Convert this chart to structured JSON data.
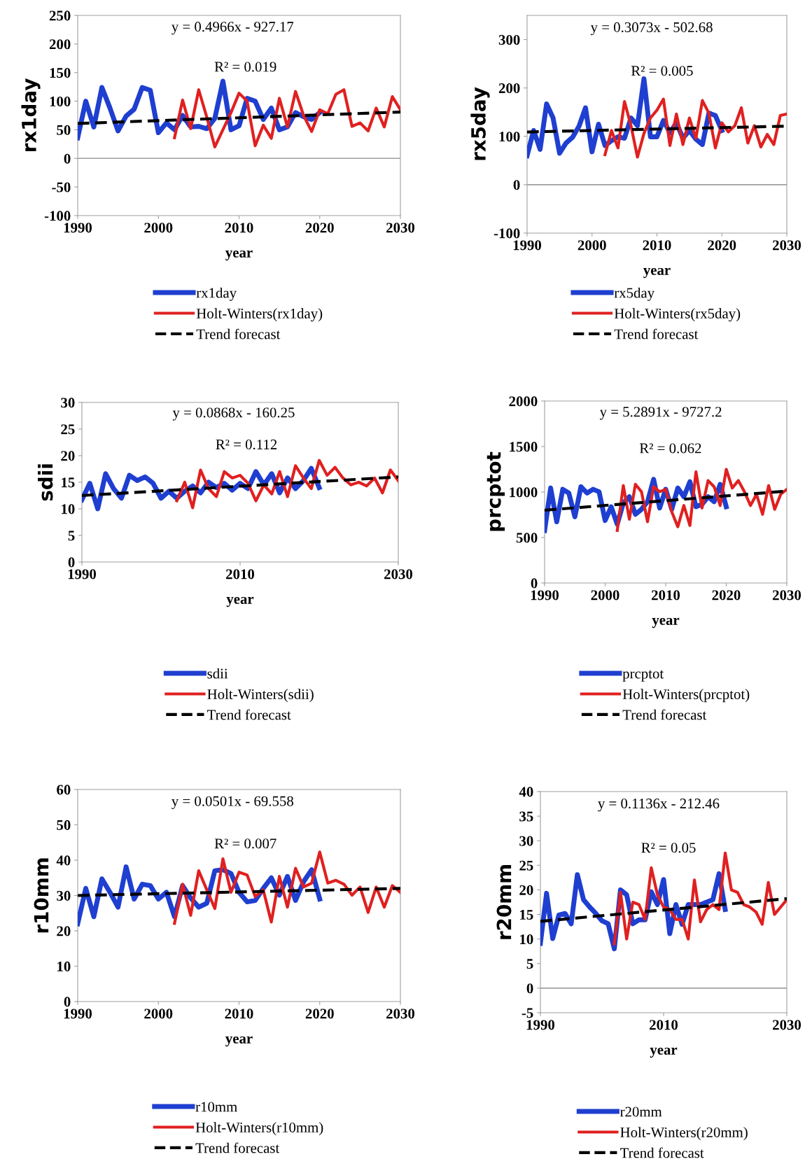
{
  "chart_data": [
    {
      "type": "line",
      "xlabel": "year",
      "ylabel": "rx1day",
      "xlim": [
        1990,
        2030
      ],
      "xticks": [
        1990,
        2000,
        2010,
        2020,
        2030
      ],
      "ylim": [
        -100,
        250
      ],
      "yticks": [
        -100,
        -50,
        0,
        50,
        100,
        150,
        200,
        250
      ],
      "legend": "bottom",
      "annotations": [
        "y = 0.4966x - 927.17",
        "R² = 0.019"
      ],
      "ref_lines": [
        {
          "axis": "y",
          "value": 0,
          "color": "#a0a0a0"
        }
      ],
      "series": [
        {
          "name": "rx1day",
          "color": "#1f3fd0",
          "x": [
            1990,
            1991,
            1992,
            1993,
            1994,
            1995,
            1996,
            1997,
            1998,
            1999,
            2000,
            2001,
            2002,
            2003,
            2004,
            2005,
            2006,
            2007,
            2008,
            2009,
            2010,
            2011,
            2012,
            2013,
            2014,
            2015,
            2016,
            2017,
            2018,
            2019,
            2020
          ],
          "values": [
            36,
            100,
            55,
            124,
            88,
            48,
            74,
            86,
            124,
            119,
            45,
            62,
            50,
            75,
            55,
            56,
            52,
            70,
            135,
            50,
            57,
            105,
            100,
            68,
            88,
            50,
            55,
            80,
            73,
            68,
            80
          ]
        },
        {
          "name": "Holt-Winters(rx1day)",
          "color": "#e02020",
          "x": [
            2002,
            2003,
            2004,
            2005,
            2006,
            2007,
            2008,
            2009,
            2010,
            2011,
            2012,
            2013,
            2014,
            2015,
            2016,
            2017,
            2018,
            2019,
            2020,
            2021,
            2022,
            2023,
            2024,
            2025,
            2026,
            2027,
            2028,
            2029,
            2030
          ],
          "values": [
            36,
            102,
            52,
            120,
            72,
            20,
            50,
            80,
            114,
            100,
            22,
            58,
            35,
            105,
            55,
            117,
            75,
            47,
            85,
            78,
            112,
            120,
            56,
            62,
            48,
            88,
            55,
            108,
            85
          ]
        },
        {
          "name": "Trend forecast",
          "color": "#000000",
          "line_style": "dashed",
          "x": [
            1990,
            2030
          ],
          "values": [
            61,
            81
          ]
        }
      ]
    },
    {
      "type": "line",
      "xlabel": "year",
      "ylabel": "rx5day",
      "xlim": [
        1990,
        2030
      ],
      "xticks": [
        1990,
        2000,
        2010,
        2020,
        2030
      ],
      "ylim": [
        -100,
        350
      ],
      "yticks": [
        -100,
        0,
        100,
        200,
        300
      ],
      "legend": "bottom",
      "annotations": [
        "y = 0.3073x - 502.68",
        "R² = 0.005"
      ],
      "ref_lines": [
        {
          "axis": "y",
          "value": 0,
          "color": "#a0a0a0"
        }
      ],
      "series": [
        {
          "name": "rx5day",
          "color": "#1f3fd0",
          "x": [
            1990,
            1991,
            1992,
            1993,
            1994,
            1995,
            1996,
            1997,
            1998,
            1999,
            2000,
            2001,
            2002,
            2003,
            2004,
            2005,
            2006,
            2007,
            2008,
            2009,
            2010,
            2011,
            2012,
            2013,
            2014,
            2015,
            2016,
            2017,
            2018,
            2019,
            2020
          ],
          "values": [
            60,
            112,
            73,
            167,
            138,
            65,
            86,
            98,
            121,
            159,
            68,
            125,
            81,
            91,
            99,
            96,
            138,
            122,
            219,
            99,
            99,
            133,
            107,
            128,
            96,
            112,
            94,
            83,
            148,
            143,
            112
          ]
        },
        {
          "name": "Holt-Winters(rx5day)",
          "color": "#e02020",
          "x": [
            2002,
            2003,
            2004,
            2005,
            2006,
            2007,
            2008,
            2009,
            2010,
            2011,
            2012,
            2013,
            2014,
            2015,
            2016,
            2017,
            2018,
            2019,
            2020,
            2021,
            2022,
            2023,
            2024,
            2025,
            2026,
            2027,
            2028,
            2029,
            2030
          ],
          "values": [
            62,
            112,
            76,
            172,
            122,
            57,
            106,
            138,
            154,
            177,
            81,
            146,
            83,
            138,
            96,
            174,
            148,
            76,
            128,
            109,
            122,
            159,
            86,
            122,
            78,
            104,
            83,
            143,
            146
          ]
        },
        {
          "name": "Trend forecast",
          "color": "#000000",
          "line_style": "dashed",
          "x": [
            1990,
            2030
          ],
          "values": [
            109,
            121
          ]
        }
      ]
    },
    {
      "type": "line",
      "xlabel": "year",
      "ylabel": "sdii",
      "xlim": [
        1990,
        2030
      ],
      "xticks": [
        1990,
        2010,
        2030
      ],
      "ylim": [
        0,
        30
      ],
      "yticks": [
        0,
        5,
        10,
        15,
        20,
        25,
        30
      ],
      "legend": "bottom",
      "annotations": [
        "y = 0.0868x - 160.25",
        "R² = 0.112"
      ],
      "series": [
        {
          "name": "sdii",
          "color": "#1f3fd0",
          "x": [
            1990,
            1991,
            1992,
            1993,
            1994,
            1995,
            1996,
            1997,
            1998,
            1999,
            2000,
            2001,
            2002,
            2003,
            2004,
            2005,
            2006,
            2007,
            2008,
            2009,
            2010,
            2011,
            2012,
            2013,
            2014,
            2015,
            2016,
            2017,
            2018,
            2019,
            2020
          ],
          "values": [
            11.7,
            14.8,
            10,
            16.6,
            13.8,
            12,
            16.3,
            15.3,
            16,
            14.8,
            12,
            13.3,
            12,
            13.3,
            14.3,
            13,
            15,
            14,
            14.8,
            13.5,
            14.8,
            13.8,
            17,
            14.5,
            16.6,
            13,
            15.8,
            13.8,
            15.3,
            17.6,
            14
          ]
        },
        {
          "name": "Holt-Winters(sdii)",
          "color": "#e02020",
          "x": [
            2002,
            2003,
            2004,
            2005,
            2006,
            2007,
            2008,
            2009,
            2010,
            2011,
            2012,
            2013,
            2014,
            2015,
            2016,
            2017,
            2018,
            2019,
            2020,
            2021,
            2022,
            2023,
            2024,
            2025,
            2026,
            2027,
            2028,
            2029,
            2030
          ],
          "values": [
            11.5,
            15,
            10.2,
            17.3,
            13.8,
            12.3,
            17,
            15.8,
            16.3,
            14.8,
            11.5,
            14.5,
            12.8,
            17,
            12.3,
            18.1,
            15.8,
            13.8,
            19.1,
            16.3,
            17.8,
            15.8,
            14.5,
            15,
            14.3,
            15.8,
            13,
            17.3,
            15.3
          ]
        },
        {
          "name": "Trend forecast",
          "color": "#000000",
          "line_style": "dashed",
          "x": [
            1990,
            2030
          ],
          "values": [
            12.5,
            16
          ]
        }
      ]
    },
    {
      "type": "line",
      "xlabel": "year",
      "ylabel": "prcptot",
      "xlim": [
        1990,
        2030
      ],
      "xticks": [
        1990,
        2000,
        2010,
        2020,
        2030
      ],
      "ylim": [
        0,
        2000
      ],
      "yticks": [
        0,
        500,
        1000,
        1500,
        2000
      ],
      "legend": "bottom",
      "annotations": [
        "y = 5.2891x - 9727.2",
        "R² = 0.062"
      ],
      "series": [
        {
          "name": "prcptot",
          "color": "#1f3fd0",
          "x": [
            1990,
            1991,
            1992,
            1993,
            1994,
            1995,
            1996,
            1997,
            1998,
            1999,
            2000,
            2001,
            2002,
            2003,
            2004,
            2005,
            2006,
            2007,
            2008,
            2009,
            2010,
            2011,
            2012,
            2013,
            2014,
            2015,
            2016,
            2017,
            2018,
            2019,
            2020
          ],
          "values": [
            577,
            1044,
            673,
            1030,
            989,
            728,
            1058,
            989,
            1030,
            1003,
            687,
            838,
            646,
            879,
            948,
            755,
            810,
            893,
            1140,
            824,
            1030,
            810,
            1044,
            948,
            1113,
            838,
            865,
            948,
            893,
            1085,
            838
          ]
        },
        {
          "name": "Holt-Winters(prcptot)",
          "color": "#e02020",
          "x": [
            2002,
            2003,
            2004,
            2005,
            2006,
            2007,
            2008,
            2009,
            2010,
            2011,
            2012,
            2013,
            2014,
            2015,
            2016,
            2017,
            2018,
            2019,
            2020,
            2021,
            2022,
            2023,
            2024,
            2025,
            2026,
            2027,
            2028,
            2029,
            2030
          ],
          "values": [
            577,
            1071,
            700,
            1085,
            1003,
            673,
            1058,
            1003,
            1030,
            783,
            618,
            852,
            632,
            1222,
            824,
            1126,
            1058,
            852,
            1250,
            1044,
            1126,
            1003,
            852,
            975,
            755,
            1071,
            810,
            975,
            1030
          ]
        },
        {
          "name": "Trend forecast",
          "color": "#000000",
          "line_style": "dashed",
          "x": [
            1990,
            2030
          ],
          "values": [
            800,
            1010
          ]
        }
      ]
    },
    {
      "type": "line",
      "xlabel": "year",
      "ylabel": "r10mm",
      "xlim": [
        1990,
        2030
      ],
      "xticks": [
        1990,
        2000,
        2010,
        2020,
        2030
      ],
      "ylim": [
        0,
        60
      ],
      "yticks": [
        0,
        10,
        20,
        30,
        40,
        50,
        60
      ],
      "legend": "bottom",
      "annotations": [
        "y = 0.0501x - 69.558",
        "R² = 0.007"
      ],
      "series": [
        {
          "name": "r10mm",
          "color": "#1f3fd0",
          "x": [
            1990,
            1991,
            1992,
            1993,
            1994,
            1995,
            1996,
            1997,
            1998,
            1999,
            2000,
            2001,
            2002,
            2003,
            2004,
            2005,
            2006,
            2007,
            2008,
            2009,
            2010,
            2011,
            2012,
            2013,
            2014,
            2015,
            2016,
            2017,
            2018,
            2019,
            2020
          ],
          "values": [
            22,
            32,
            24,
            34.7,
            30.9,
            26.7,
            38.1,
            29,
            33.2,
            32.8,
            29,
            30.9,
            24,
            32.8,
            29.3,
            26.7,
            27.8,
            37,
            37.3,
            36.2,
            30.9,
            28.2,
            28.6,
            32,
            35,
            30.1,
            35.4,
            28.6,
            33.9,
            37.3,
            29
          ]
        },
        {
          "name": "Holt-Winters(r10mm)",
          "color": "#e02020",
          "x": [
            2002,
            2003,
            2004,
            2005,
            2006,
            2007,
            2008,
            2009,
            2010,
            2011,
            2012,
            2013,
            2014,
            2015,
            2016,
            2017,
            2018,
            2019,
            2020,
            2021,
            2022,
            2023,
            2024,
            2025,
            2026,
            2027,
            2028,
            2029,
            2030
          ],
          "values": [
            22.1,
            33.2,
            24.4,
            37,
            31.6,
            26.3,
            40.4,
            30.9,
            36.6,
            35.8,
            29.7,
            31.6,
            22.5,
            35.4,
            26.7,
            37.7,
            32.4,
            33.5,
            42.3,
            33.5,
            34.3,
            33.2,
            30.1,
            32.4,
            25.2,
            32.4,
            26.7,
            32.8,
            30.9
          ]
        },
        {
          "name": "Trend forecast",
          "color": "#000000",
          "line_style": "dashed",
          "x": [
            1990,
            2030
          ],
          "values": [
            30,
            32
          ]
        }
      ]
    },
    {
      "type": "line",
      "xlabel": "year",
      "ylabel": "r20mm",
      "xlim": [
        1990,
        2030
      ],
      "xticks": [
        1990,
        2010,
        2030
      ],
      "ylim": [
        -5,
        40
      ],
      "yticks": [
        -5,
        0,
        5,
        10,
        15,
        20,
        25,
        30,
        35,
        40
      ],
      "legend": "bottom",
      "annotations": [
        "y = 0.1136x - 212.46",
        "R² = 0.05"
      ],
      "ref_lines": [
        {
          "axis": "y",
          "value": 0,
          "color": "#a0a0a0"
        }
      ],
      "series": [
        {
          "name": "r20mm",
          "color": "#1f3fd0",
          "x": [
            1990,
            1991,
            1992,
            1993,
            1994,
            1995,
            1996,
            1997,
            1998,
            1999,
            2000,
            2001,
            2002,
            2003,
            2004,
            2005,
            2006,
            2007,
            2008,
            2009,
            2010,
            2011,
            2012,
            2013,
            2014,
            2015,
            2016,
            2017,
            2018,
            2019,
            2020
          ],
          "values": [
            9.1,
            19.3,
            10.1,
            14.9,
            15.2,
            13.1,
            23.1,
            18,
            16.5,
            15.2,
            13.7,
            13.1,
            8,
            20,
            19,
            13.1,
            13.9,
            13.9,
            19.6,
            17,
            22.1,
            11.1,
            17,
            13,
            17,
            17,
            17,
            17.5,
            18,
            23.3,
            16
          ]
        },
        {
          "name": "Holt-Winters(r20mm)",
          "color": "#e02020",
          "x": [
            2002,
            2003,
            2004,
            2005,
            2006,
            2007,
            2008,
            2009,
            2010,
            2011,
            2012,
            2013,
            2014,
            2015,
            2016,
            2017,
            2018,
            2019,
            2020,
            2021,
            2022,
            2023,
            2024,
            2025,
            2026,
            2027,
            2028,
            2029,
            2030
          ],
          "values": [
            9,
            19.5,
            10,
            17.5,
            17,
            14,
            24.5,
            19,
            16.5,
            16,
            14,
            14,
            10,
            22,
            13.5,
            16,
            17,
            16,
            27.5,
            20,
            19.5,
            17,
            16.5,
            15.5,
            13,
            21.5,
            15,
            16.5,
            18
          ]
        },
        {
          "name": "Trend forecast",
          "color": "#000000",
          "line_style": "dashed",
          "x": [
            1990,
            2030
          ],
          "values": [
            13.6,
            18.2
          ]
        }
      ]
    }
  ]
}
